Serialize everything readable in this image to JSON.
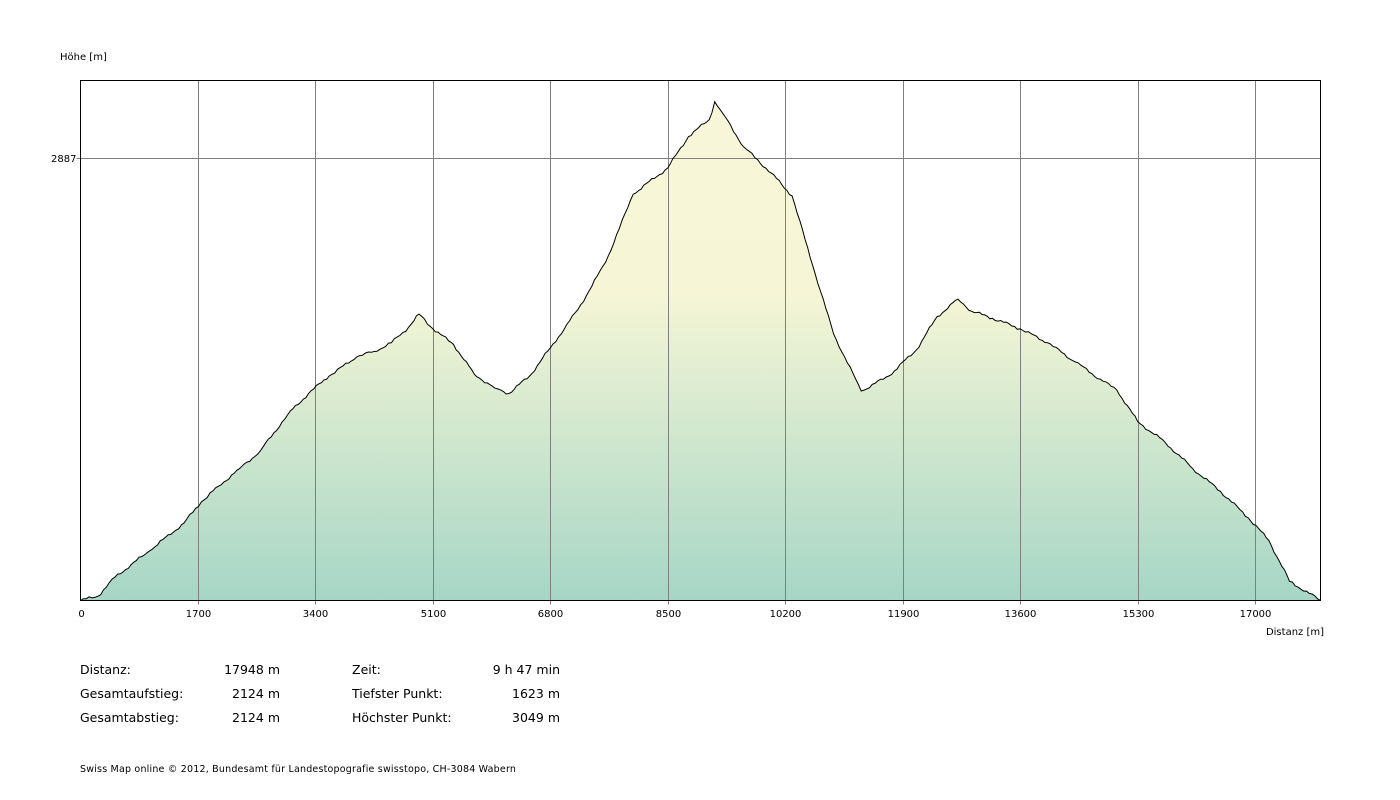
{
  "chart_data": {
    "type": "area",
    "ylabel": "Höhe [m]",
    "xlabel": "Distanz [m]",
    "xlim": [
      0,
      17948
    ],
    "ylim": [
      1623,
      3110
    ],
    "x_ticks": [
      0,
      1700,
      3400,
      5100,
      6800,
      8500,
      10200,
      11900,
      13600,
      15300,
      17000
    ],
    "y_ticks": [
      2887
    ],
    "grid": true,
    "colors": {
      "top": "#f8f6d8",
      "middle": "#f6f6d6",
      "bottom": "#a6d6c6",
      "line": "#000000",
      "grid": "#808080"
    },
    "profile": [
      [
        0,
        1623
      ],
      [
        250,
        1635
      ],
      [
        500,
        1690
      ],
      [
        1000,
        1765
      ],
      [
        1500,
        1845
      ],
      [
        1750,
        1905
      ],
      [
        2000,
        1950
      ],
      [
        2300,
        2000
      ],
      [
        2600,
        2050
      ],
      [
        3000,
        2155
      ],
      [
        3300,
        2215
      ],
      [
        3600,
        2265
      ],
      [
        4000,
        2320
      ],
      [
        4250,
        2335
      ],
      [
        4500,
        2360
      ],
      [
        4750,
        2405
      ],
      [
        4900,
        2442
      ],
      [
        5100,
        2400
      ],
      [
        5400,
        2355
      ],
      [
        5700,
        2270
      ],
      [
        6000,
        2230
      ],
      [
        6200,
        2215
      ],
      [
        6500,
        2265
      ],
      [
        6800,
        2345
      ],
      [
        7200,
        2455
      ],
      [
        7600,
        2590
      ],
      [
        8000,
        2785
      ],
      [
        8500,
        2860
      ],
      [
        8800,
        2950
      ],
      [
        9100,
        2998
      ],
      [
        9180,
        3049
      ],
      [
        9300,
        3015
      ],
      [
        9600,
        2920
      ],
      [
        10000,
        2845
      ],
      [
        10300,
        2780
      ],
      [
        10600,
        2580
      ],
      [
        10900,
        2385
      ],
      [
        11300,
        2222
      ],
      [
        11700,
        2265
      ],
      [
        12100,
        2340
      ],
      [
        12400,
        2435
      ],
      [
        12700,
        2485
      ],
      [
        12900,
        2450
      ],
      [
        13200,
        2430
      ],
      [
        13600,
        2400
      ],
      [
        14000,
        2360
      ],
      [
        14400,
        2305
      ],
      [
        14800,
        2250
      ],
      [
        15000,
        2225
      ],
      [
        15300,
        2135
      ],
      [
        15700,
        2075
      ],
      [
        16100,
        2000
      ],
      [
        16500,
        1935
      ],
      [
        16900,
        1860
      ],
      [
        17200,
        1795
      ],
      [
        17500,
        1678
      ],
      [
        17948,
        1623
      ]
    ]
  },
  "stats": {
    "left": [
      {
        "label": "Distanz:",
        "value": "17948 m"
      },
      {
        "label": "Gesamtaufstieg:",
        "value": "2124 m"
      },
      {
        "label": "Gesamtabstieg:",
        "value": "2124 m"
      }
    ],
    "right": [
      {
        "label": "Zeit:",
        "value": "9 h 47 min"
      },
      {
        "label": "Tiefster Punkt:",
        "value": "1623 m"
      },
      {
        "label": "Höchster Punkt:",
        "value": "3049 m"
      }
    ]
  },
  "footer": {
    "text": "Swiss Map online  © 2012, Bundesamt für Landestopografie swisstopo, CH-3084 Wabern"
  }
}
